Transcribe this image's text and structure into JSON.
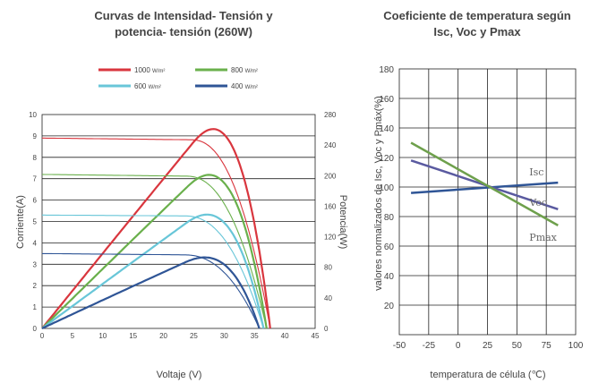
{
  "chart_data": [
    {
      "type": "line",
      "title": [
        "Curvas de Intensidad- Tensión y",
        "potencia- tensión  (260W)"
      ],
      "xlabel": "Voltaje (V)",
      "ylabel": "Corriente(A)",
      "y2label": "Potencia(W)",
      "xlim": [
        0,
        45
      ],
      "ylim": [
        0,
        10
      ],
      "y2lim": [
        0,
        280
      ],
      "xticks": [
        "0",
        "5",
        "10",
        "15",
        "20",
        "25",
        "30",
        "35",
        "40",
        "45"
      ],
      "yticks": [
        "0",
        "1",
        "2",
        "3",
        "4",
        "5",
        "6",
        "7",
        "8",
        "9",
        "10"
      ],
      "y2ticks": [
        "0",
        "40",
        "80",
        "120",
        "160",
        "200",
        "240",
        "280"
      ],
      "grid": "horizontal",
      "legend_position": "top",
      "series": [
        {
          "name": "1000",
          "unit": "W/m²",
          "color": "#d9363e",
          "isc": 8.9,
          "voc": 37.6,
          "vmp": 30.7,
          "imp": 8.5,
          "pmax": 261
        },
        {
          "name": "800",
          "unit": "W/m²",
          "color": "#6ab04c",
          "isc": 7.2,
          "voc": 37.0,
          "vmp": 29.6,
          "imp": 6.8,
          "pmax": 201
        },
        {
          "name": "600",
          "unit": "W/m²",
          "color": "#68c6d8",
          "isc": 5.3,
          "voc": 36.5,
          "vmp": 29.3,
          "imp": 5.1,
          "pmax": 149
        },
        {
          "name": "400",
          "unit": "W/m²",
          "color": "#2f5596",
          "isc": 3.5,
          "voc": 35.8,
          "vmp": 29.1,
          "imp": 3.2,
          "pmax": 93
        }
      ]
    },
    {
      "type": "line",
      "title": [
        "Coeficiente de temperatura según",
        "Isc, Voc y Pmax"
      ],
      "xlabel": "temperatura de célula (℃)",
      "ylabel": "valores normalizados de Isc, Voc y Pmáx(%)",
      "xlim": [
        -50,
        100
      ],
      "ylim": [
        0,
        180
      ],
      "xticks": [
        "-50",
        "-25",
        "0",
        "25",
        "50",
        "75",
        "100"
      ],
      "yticks": [
        "20",
        "40",
        "60",
        "80",
        "100",
        "120",
        "140",
        "160",
        "180"
      ],
      "grid": "both",
      "series": [
        {
          "name": "Isc",
          "color": "#2f5596",
          "x": [
            -40,
            85
          ],
          "y": [
            96,
            103
          ]
        },
        {
          "name": "Voc",
          "color": "#5a5aa0",
          "x": [
            -40,
            85
          ],
          "y": [
            118,
            85
          ]
        },
        {
          "name": "Pmax",
          "color": "#6ea04c",
          "x": [
            -40,
            85
          ],
          "y": [
            130,
            74
          ]
        }
      ]
    }
  ]
}
